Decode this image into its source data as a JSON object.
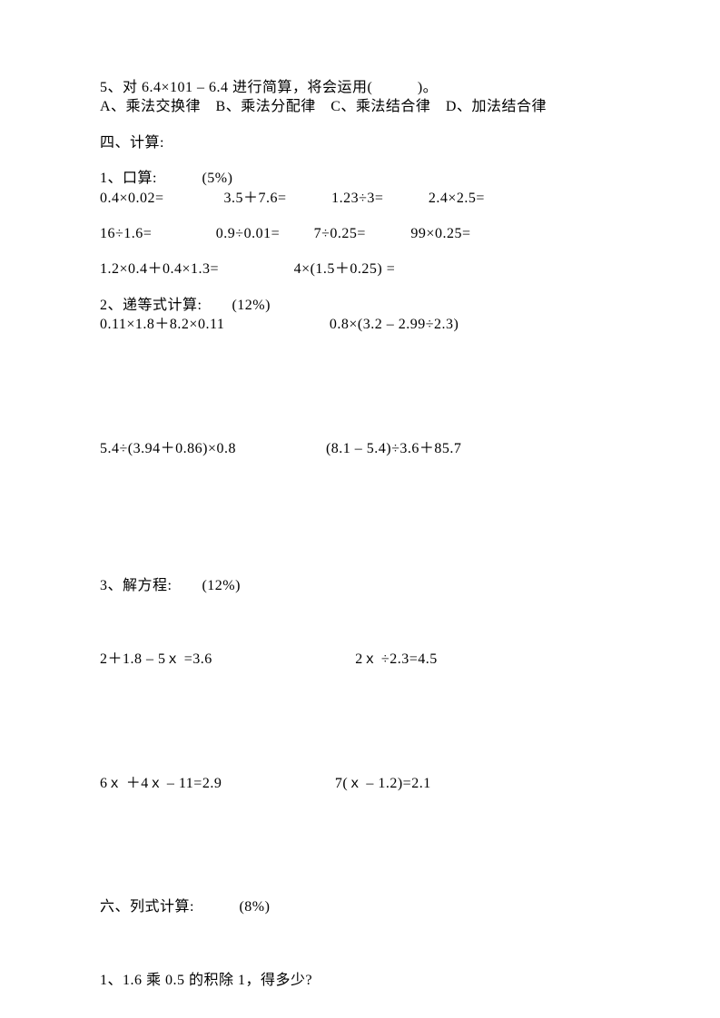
{
  "q5": {
    "text": "5、对 6.4×101 – 6.4 进行简算，将会运用(　　　)。",
    "opts": "A、乘法交换律　B、乘法分配律　C、乘法结合律　D、加法结合律"
  },
  "s4": {
    "title": "四、计算:",
    "p1": {
      "title": "1、口算:　　　(5%)",
      "r1": "0.4×0.02=　　　　3.5＋7.6=　　　1.23÷3=　　　2.4×2.5=",
      "r2": "16÷1.6=　　　　 0.9÷0.01=　　 7÷0.25=　　　99×0.25=",
      "r3": "1.2×0.4＋0.4×1.3=　　　　　4×(1.5＋0.25) ="
    },
    "p2": {
      "title": "2、递等式计算:　　(12%)",
      "r1": "0.11×1.8＋8.2×0.11　　　　　　　0.8×(3.2 – 2.99÷2.3)",
      "r2": "5.4÷(3.94＋0.86)×0.8　　　　　　(8.1 – 5.4)÷3.6＋85.7"
    },
    "p3": {
      "title": "3、解方程:　　(12%)",
      "r1a": "2＋1.8 – 5",
      "r1b": "=3.6　　　　　　　　　  2",
      "r1c": "÷2.3=4.5",
      "r2a": "6",
      "r2b": "＋4",
      "r2c": "– 11=2.9　　　　　　　  7(",
      "r2d": "– 1.2)=2.1",
      "x": "ｘ"
    }
  },
  "s6": {
    "title": "六、列式计算:　　　(8%)",
    "q1": "1、1.6 乘 0.5 的积除 1，得多少?"
  }
}
